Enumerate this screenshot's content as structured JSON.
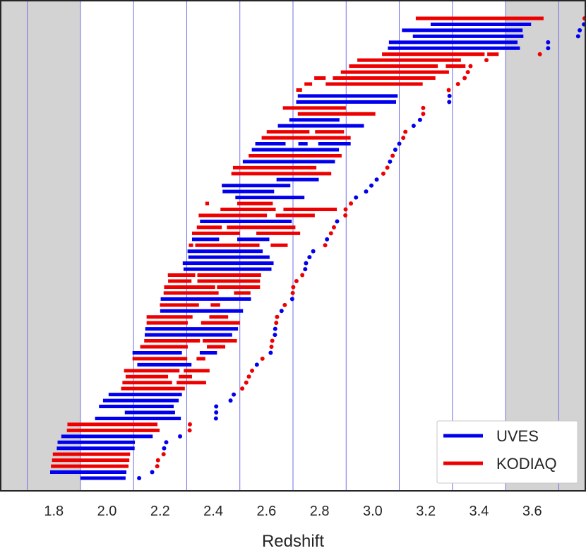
{
  "chart_data": {
    "type": "line",
    "xlabel": "Redshift",
    "ylabel": "",
    "xlim": [
      1.6,
      3.8
    ],
    "xticks": [
      "1.8",
      "2.0",
      "2.2",
      "2.4",
      "2.6",
      "2.8",
      "3.0",
      "3.2",
      "3.4",
      "3.6"
    ],
    "xtick_values": [
      1.8,
      2.0,
      2.2,
      2.4,
      2.6,
      2.8,
      3.0,
      3.2,
      3.4,
      3.6
    ],
    "vlines": [
      1.7,
      1.9,
      2.1,
      2.3,
      2.5,
      2.7,
      2.9,
      3.1,
      3.3,
      3.5,
      3.7
    ],
    "shaded_regions": [
      [
        1.6,
        1.9
      ],
      [
        3.5,
        3.8
      ]
    ],
    "grid": false,
    "legend_position": "lower-right",
    "colors": {
      "UVES": "#0000ee",
      "KODIAQ": "#ee0000",
      "shade": "#d3d3d3",
      "vline": "#6f6fe8"
    },
    "series": [
      {
        "name": "UVES",
        "color": "#0000ee"
      },
      {
        "name": "KODIAQ",
        "color": "#ee0000"
      }
    ],
    "sightlines": [
      {
        "survey": "KODIAQ",
        "segments": [
          [
            3.162,
            3.643
          ]
        ],
        "zem": 3.797
      },
      {
        "survey": "UVES",
        "segments": [
          [
            3.218,
            3.596
          ]
        ],
        "zem": 3.795
      },
      {
        "survey": "UVES",
        "segments": [
          [
            3.11,
            3.564
          ]
        ],
        "zem": 3.779
      },
      {
        "survey": "UVES",
        "segments": [
          [
            3.151,
            3.567
          ]
        ],
        "zem": 3.773
      },
      {
        "survey": "UVES",
        "segments": [
          [
            3.061,
            3.545
          ]
        ],
        "zem": 3.66
      },
      {
        "survey": "UVES",
        "segments": [
          [
            3.057,
            3.554
          ]
        ],
        "zem": 3.66
      },
      {
        "survey": "KODIAQ",
        "segments": [
          [
            3.035,
            3.421
          ],
          [
            3.431,
            3.474
          ]
        ],
        "zem": 3.629
      },
      {
        "survey": "KODIAQ",
        "segments": [
          [
            2.942,
            3.332
          ]
        ],
        "zem": 3.428
      },
      {
        "survey": "KODIAQ",
        "segments": [
          [
            2.911,
            3.245
          ],
          [
            3.275,
            3.349
          ]
        ],
        "zem": 3.368
      },
      {
        "survey": "KODIAQ",
        "segments": [
          [
            2.88,
            3.287
          ]
        ],
        "zem": 3.358
      },
      {
        "survey": "KODIAQ",
        "segments": [
          [
            2.78,
            2.823
          ],
          [
            2.85,
            3.236
          ]
        ],
        "zem": 3.346
      },
      {
        "survey": "KODIAQ",
        "segments": [
          [
            2.743,
            2.772
          ],
          [
            2.823,
            3.188
          ]
        ],
        "zem": 3.321
      },
      {
        "survey": "KODIAQ",
        "segments": [
          [
            2.712,
            2.734
          ]
        ],
        "zem": 3.286
      },
      {
        "survey": "UVES",
        "segments": [
          [
            2.718,
            3.094
          ]
        ],
        "zem": 3.289
      },
      {
        "survey": "UVES",
        "segments": [
          [
            2.712,
            3.088
          ]
        ],
        "zem": 3.288
      },
      {
        "survey": "KODIAQ",
        "segments": [
          [
            2.662,
            2.899
          ]
        ],
        "zem": 3.19
      },
      {
        "survey": "KODIAQ",
        "segments": [
          [
            2.718,
            3.01
          ]
        ],
        "zem": 3.19
      },
      {
        "survey": "UVES",
        "segments": [
          [
            2.686,
            2.875
          ]
        ],
        "zem": 3.178
      },
      {
        "survey": "UVES",
        "segments": [
          [
            2.643,
            2.967
          ]
        ],
        "zem": 3.154
      },
      {
        "survey": "KODIAQ",
        "segments": [
          [
            2.601,
            2.762
          ],
          [
            2.783,
            2.892
          ]
        ],
        "zem": 3.123
      },
      {
        "survey": "KODIAQ",
        "segments": [
          [
            2.582,
            2.917
          ]
        ],
        "zem": 3.115
      },
      {
        "survey": "UVES",
        "segments": [
          [
            2.558,
            2.672
          ],
          [
            2.72,
            2.755
          ],
          [
            2.795,
            2.917
          ]
        ],
        "zem": 3.1
      },
      {
        "survey": "UVES",
        "segments": [
          [
            2.545,
            2.873
          ]
        ],
        "zem": 3.085
      },
      {
        "survey": "KODIAQ",
        "segments": [
          [
            2.533,
            2.883
          ]
        ],
        "zem": 3.075
      },
      {
        "survey": "UVES",
        "segments": [
          [
            2.511,
            2.858
          ]
        ],
        "zem": 3.065
      },
      {
        "survey": "KODIAQ",
        "segments": [
          [
            2.474,
            2.788
          ]
        ],
        "zem": 3.055
      },
      {
        "survey": "KODIAQ",
        "segments": [
          [
            2.468,
            2.844
          ]
        ],
        "zem": 3.04
      },
      {
        "survey": "UVES",
        "segments": [
          [
            2.638,
            2.797
          ]
        ],
        "zem": 3.015
      },
      {
        "survey": "UVES",
        "segments": [
          [
            2.432,
            2.69
          ]
        ],
        "zem": 2.995
      },
      {
        "survey": "UVES",
        "segments": [
          [
            2.435,
            2.629
          ]
        ],
        "zem": 2.975
      },
      {
        "survey": "UVES",
        "segments": [
          [
            2.483,
            2.743
          ]
        ],
        "zem": 2.937
      },
      {
        "survey": "KODIAQ",
        "segments": [
          [
            2.37,
            2.384
          ],
          [
            2.49,
            2.624
          ]
        ],
        "zem": 2.918
      },
      {
        "survey": "KODIAQ",
        "segments": [
          [
            2.427,
            2.635
          ],
          [
            2.664,
            2.865
          ]
        ],
        "zem": 2.898
      },
      {
        "survey": "KODIAQ",
        "segments": [
          [
            2.345,
            2.602
          ],
          [
            2.635,
            2.782
          ]
        ],
        "zem": 2.897
      },
      {
        "survey": "UVES",
        "segments": [
          [
            2.35,
            2.695
          ]
        ],
        "zem": 2.866
      },
      {
        "survey": "KODIAQ",
        "segments": [
          [
            2.338,
            2.432
          ],
          [
            2.451,
            2.709
          ]
        ],
        "zem": 2.854
      },
      {
        "survey": "KODIAQ",
        "segments": [
          [
            2.32,
            2.5
          ],
          [
            2.562,
            2.727
          ]
        ],
        "zem": 2.843
      },
      {
        "survey": "UVES",
        "segments": [
          [
            2.32,
            2.422
          ],
          [
            2.49,
            2.611
          ]
        ],
        "zem": 2.828
      },
      {
        "survey": "KODIAQ",
        "segments": [
          [
            2.308,
            2.324
          ],
          [
            2.332,
            2.574
          ],
          [
            2.616,
            2.68
          ]
        ],
        "zem": 2.821
      },
      {
        "survey": "UVES",
        "segments": [
          [
            2.303,
            2.586
          ]
        ],
        "zem": 2.776
      },
      {
        "survey": "UVES",
        "segments": [
          [
            2.306,
            2.612
          ]
        ],
        "zem": 2.762
      },
      {
        "survey": "UVES",
        "segments": [
          [
            2.285,
            2.627
          ]
        ],
        "zem": 2.749
      },
      {
        "survey": "UVES",
        "segments": [
          [
            2.288,
            2.619
          ]
        ],
        "zem": 2.746
      },
      {
        "survey": "KODIAQ",
        "segments": [
          [
            2.229,
            2.332
          ],
          [
            2.34,
            2.58
          ]
        ],
        "zem": 2.735
      },
      {
        "survey": "KODIAQ",
        "segments": [
          [
            2.23,
            2.318
          ],
          [
            2.34,
            2.576
          ]
        ],
        "zem": 2.713
      },
      {
        "survey": "KODIAQ",
        "segments": [
          [
            2.215,
            2.407
          ],
          [
            2.414,
            2.576
          ]
        ],
        "zem": 2.701
      },
      {
        "survey": "KODIAQ",
        "segments": [
          [
            2.213,
            2.42
          ],
          [
            2.478,
            2.54
          ]
        ],
        "zem": 2.699
      },
      {
        "survey": "UVES",
        "segments": [
          [
            2.202,
            2.542
          ]
        ],
        "zem": 2.697
      },
      {
        "survey": "KODIAQ",
        "segments": [
          [
            2.199,
            2.346
          ],
          [
            2.39,
            2.426
          ]
        ],
        "zem": 2.669
      },
      {
        "survey": "UVES",
        "segments": [
          [
            2.2,
            2.512
          ]
        ],
        "zem": 2.657
      },
      {
        "survey": "KODIAQ",
        "segments": [
          [
            2.149,
            2.322
          ],
          [
            2.385,
            2.456
          ]
        ],
        "zem": 2.64
      },
      {
        "survey": "KODIAQ",
        "segments": [
          [
            2.149,
            2.304
          ],
          [
            2.354,
            2.5
          ]
        ],
        "zem": 2.637
      },
      {
        "survey": "UVES",
        "segments": [
          [
            2.144,
            2.493
          ]
        ],
        "zem": 2.633
      },
      {
        "survey": "UVES",
        "segments": [
          [
            2.142,
            2.471
          ]
        ],
        "zem": 2.632
      },
      {
        "survey": "KODIAQ",
        "segments": [
          [
            2.14,
            2.35
          ],
          [
            2.36,
            2.489
          ]
        ],
        "zem": 2.622
      },
      {
        "survey": "KODIAQ",
        "segments": [
          [
            2.125,
            2.304
          ],
          [
            2.376,
            2.445
          ]
        ],
        "zem": 2.619
      },
      {
        "survey": "UVES",
        "segments": [
          [
            2.096,
            2.282
          ],
          [
            2.349,
            2.414
          ]
        ],
        "zem": 2.616
      },
      {
        "survey": "KODIAQ",
        "segments": [
          [
            2.096,
            2.302
          ],
          [
            2.337,
            2.37
          ]
        ],
        "zem": 2.585
      },
      {
        "survey": "UVES",
        "segments": [
          [
            2.114,
            2.318
          ]
        ],
        "zem": 2.564
      },
      {
        "survey": "KODIAQ",
        "segments": [
          [
            2.064,
            2.273
          ],
          [
            2.289,
            2.386
          ]
        ],
        "zem": 2.546
      },
      {
        "survey": "KODIAQ",
        "segments": [
          [
            2.07,
            2.23
          ],
          [
            2.27,
            2.32
          ]
        ],
        "zem": 2.534
      },
      {
        "survey": "KODIAQ",
        "segments": [
          [
            2.058,
            2.245
          ],
          [
            2.262,
            2.373
          ]
        ],
        "zem": 2.524
      },
      {
        "survey": "KODIAQ",
        "segments": [
          [
            2.053,
            2.293
          ]
        ],
        "zem": 2.509
      },
      {
        "survey": "UVES",
        "segments": [
          [
            2.006,
            2.282
          ]
        ],
        "zem": 2.477
      },
      {
        "survey": "UVES",
        "segments": [
          [
            1.985,
            2.27
          ]
        ],
        "zem": 2.465
      },
      {
        "survey": "UVES",
        "segments": [
          [
            1.97,
            2.251
          ]
        ],
        "zem": 2.411
      },
      {
        "survey": "UVES",
        "segments": [
          [
            2.067,
            2.256
          ]
        ],
        "zem": 2.411
      },
      {
        "survey": "UVES",
        "segments": [
          [
            1.955,
            2.278
          ]
        ],
        "zem": 2.41
      },
      {
        "survey": "KODIAQ",
        "segments": [
          [
            1.851,
            2.19
          ]
        ],
        "zem": 2.312
      },
      {
        "survey": "KODIAQ",
        "segments": [
          [
            1.849,
            2.198
          ]
        ],
        "zem": 2.311
      },
      {
        "survey": "UVES",
        "segments": [
          [
            1.828,
            2.172
          ]
        ],
        "zem": 2.275
      },
      {
        "survey": "UVES",
        "segments": [
          [
            1.814,
            2.105
          ]
        ],
        "zem": 2.223
      },
      {
        "survey": "UVES",
        "segments": [
          [
            1.811,
            2.104
          ]
        ],
        "zem": 2.215
      },
      {
        "survey": "KODIAQ",
        "segments": [
          [
            1.796,
            2.087
          ]
        ],
        "zem": 2.213
      },
      {
        "survey": "KODIAQ",
        "segments": [
          [
            1.793,
            2.084
          ]
        ],
        "zem": 2.192
      },
      {
        "survey": "KODIAQ",
        "segments": [
          [
            1.789,
            2.081
          ]
        ],
        "zem": 2.189
      },
      {
        "survey": "UVES",
        "segments": [
          [
            1.786,
            2.073
          ]
        ],
        "zem": 2.17
      },
      {
        "survey": "UVES",
        "segments": [
          [
            1.9,
            2.07
          ]
        ],
        "zem": 2.121
      }
    ]
  },
  "legend": {
    "items": [
      {
        "label": "UVES",
        "color": "#0000ee"
      },
      {
        "label": "KODIAQ",
        "color": "#ee0000"
      }
    ]
  }
}
